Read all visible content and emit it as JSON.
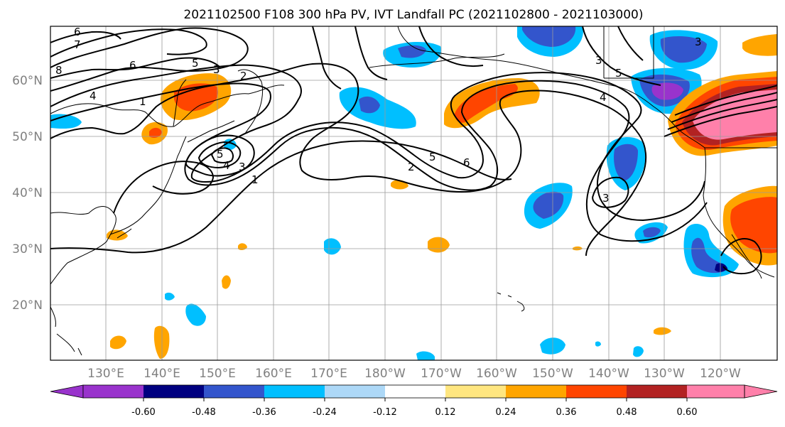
{
  "title": "2021102500 F108 300 hPa PV, IVT Landfall PC (2021102800 - 2021103000)",
  "map": {
    "lat_labels": [
      "60°N",
      "50°N",
      "40°N",
      "30°N",
      "20°N"
    ],
    "lon_labels": [
      "130°E",
      "140°E",
      "150°E",
      "160°E",
      "170°E",
      "180°W",
      "170°W",
      "160°W",
      "150°W",
      "140°W",
      "130°W",
      "120°W"
    ],
    "pv_contour_labels": [
      "6",
      "7",
      "6",
      "5",
      "4",
      "1",
      "3",
      "2",
      "8",
      "5",
      "4",
      "3",
      "1",
      "2",
      "5",
      "6",
      "4",
      "5",
      "3",
      "3",
      "3"
    ]
  },
  "colorbar": {
    "colors": [
      "#9933cc",
      "#000080",
      "#3355cc",
      "#00bfff",
      "#add8f7",
      "#ffffff",
      "#ffe680",
      "#ffa500",
      "#ff4500",
      "#b22222",
      "#ff80aa"
    ],
    "tick_labels": [
      "-0.60",
      "-0.48",
      "-0.36",
      "-0.24",
      "-0.12",
      "0.12",
      "0.24",
      "0.36",
      "0.48",
      "0.60"
    ]
  }
}
